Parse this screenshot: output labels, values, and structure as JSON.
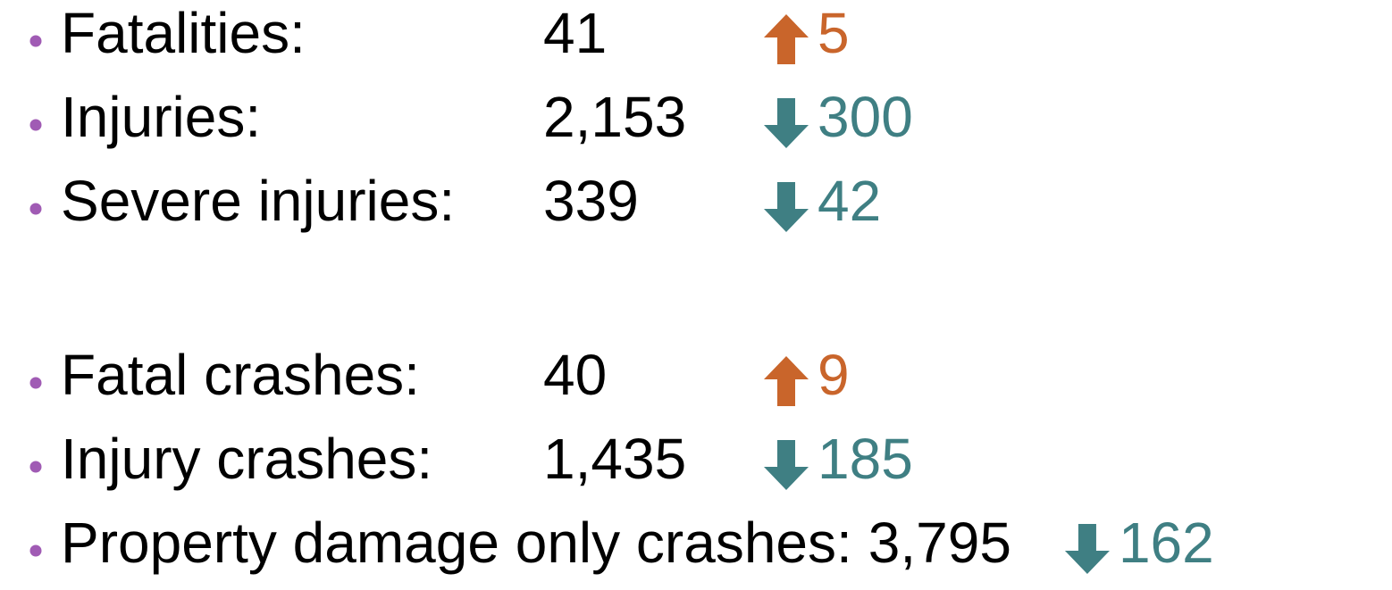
{
  "groups": [
    {
      "items": [
        {
          "label": "Fatalities:",
          "value": "41",
          "change": "5",
          "direction": "up"
        },
        {
          "label": "Injuries:",
          "value": "2,153",
          "change": "300",
          "direction": "down"
        },
        {
          "label": "Severe injuries:",
          "value": "339",
          "change": "42",
          "direction": "down"
        }
      ]
    },
    {
      "items": [
        {
          "label": "Fatal crashes:",
          "value": "40",
          "change": "9",
          "direction": "up"
        },
        {
          "label": "Injury crashes:",
          "value": "1,435",
          "change": "185",
          "direction": "down"
        },
        {
          "label": "Property damage only crashes:",
          "value": "3,795",
          "change": "162",
          "direction": "down"
        }
      ]
    }
  ]
}
